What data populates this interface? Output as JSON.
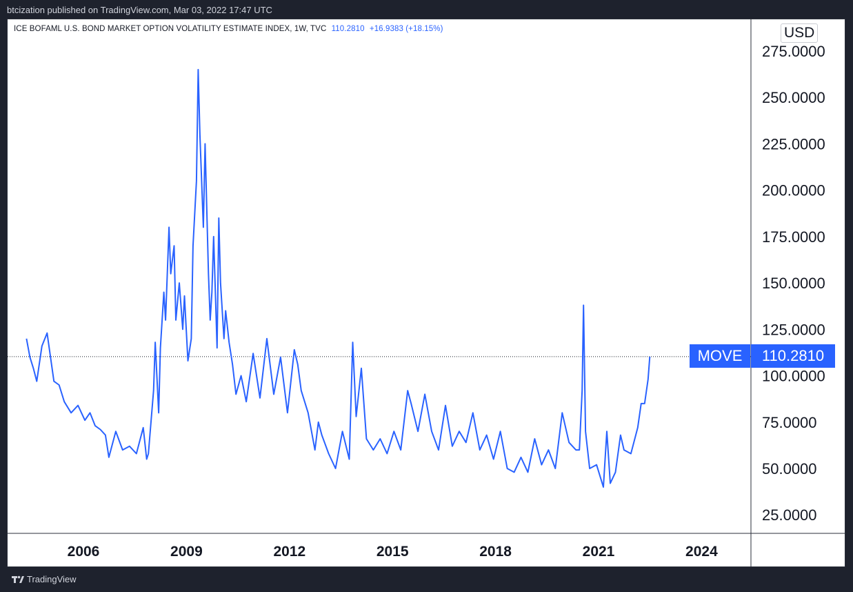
{
  "header": {
    "published": "btcization published on TradingView.com, Mar 03, 2022 17:47 UTC"
  },
  "legend": {
    "symbol": "ICE BOFAML U.S. BOND MARKET OPTION VOLATILITY ESTIMATE INDEX, 1W, TVC",
    "value": "110.2810",
    "change": "+16.9383 (+18.15%)"
  },
  "currency": "USD",
  "badges": {
    "symbol": "MOVE",
    "last": "110.2810"
  },
  "footer": {
    "brand": "TradingView"
  },
  "colors": {
    "line": "#2962ff",
    "background": "#ffffff",
    "frame": "#1e222d",
    "text": "#131722"
  },
  "chart_data": {
    "type": "line",
    "title": "ICE BOFAML U.S. BOND MARKET OPTION VOLATILITY ESTIMATE INDEX, 1W, TVC",
    "ylabel": "",
    "xlabel": "",
    "x_ticks": [
      "2006",
      "2009",
      "2012",
      "2015",
      "2018",
      "2021",
      "2024"
    ],
    "y_ticks": [
      "25.0000",
      "50.0000",
      "75.0000",
      "100.0000",
      "125.0000",
      "150.0000",
      "175.0000",
      "200.0000",
      "225.0000",
      "250.0000",
      "275.0000"
    ],
    "ylim": [
      15,
      285
    ],
    "xlim": [
      2003.9,
      2025.4
    ],
    "grid": false,
    "last_value": 110.281,
    "series": [
      {
        "name": "MOVE",
        "x": [
          2004.0,
          2004.1,
          2004.2,
          2004.3,
          2004.45,
          2004.6,
          2004.8,
          2004.95,
          2005.1,
          2005.3,
          2005.5,
          2005.7,
          2005.85,
          2006.0,
          2006.15,
          2006.3,
          2006.4,
          2006.6,
          2006.8,
          2007.0,
          2007.2,
          2007.4,
          2007.5,
          2007.55,
          2007.7,
          2007.75,
          2007.85,
          2007.9,
          2008.0,
          2008.05,
          2008.15,
          2008.2,
          2008.3,
          2008.35,
          2008.45,
          2008.55,
          2008.6,
          2008.7,
          2008.8,
          2008.85,
          2008.95,
          2009.0,
          2009.05,
          2009.15,
          2009.2,
          2009.3,
          2009.35,
          2009.4,
          2009.45,
          2009.55,
          2009.6,
          2009.65,
          2009.75,
          2009.8,
          2009.9,
          2010.0,
          2010.1,
          2010.25,
          2010.4,
          2010.6,
          2010.8,
          2011.0,
          2011.2,
          2011.4,
          2011.6,
          2011.8,
          2011.9,
          2012.0,
          2012.2,
          2012.4,
          2012.5,
          2012.6,
          2012.8,
          2013.0,
          2013.2,
          2013.4,
          2013.5,
          2013.6,
          2013.75,
          2013.9,
          2014.1,
          2014.3,
          2014.5,
          2014.7,
          2014.9,
          2015.1,
          2015.2,
          2015.4,
          2015.6,
          2015.8,
          2016.0,
          2016.2,
          2016.4,
          2016.6,
          2016.8,
          2017.0,
          2017.2,
          2017.4,
          2017.6,
          2017.8,
          2018.0,
          2018.2,
          2018.4,
          2018.6,
          2018.8,
          2019.0,
          2019.2,
          2019.4,
          2019.6,
          2019.8,
          2020.0,
          2020.1,
          2020.18,
          2020.22,
          2020.28,
          2020.4,
          2020.6,
          2020.8,
          2020.9,
          2021.0,
          2021.15,
          2021.3,
          2021.4,
          2021.6,
          2021.8,
          2021.9,
          2022.0,
          2022.1,
          2022.15
        ],
        "values": [
          120,
          110,
          104,
          97,
          116,
          123,
          97,
          95,
          86,
          80,
          84,
          76,
          80,
          73,
          71,
          68,
          56,
          70,
          60,
          62,
          58,
          72,
          55,
          58,
          92,
          118,
          80,
          115,
          145,
          130,
          180,
          155,
          170,
          130,
          150,
          125,
          143,
          108,
          120,
          170,
          205,
          265,
          230,
          180,
          225,
          155,
          130,
          145,
          175,
          115,
          185,
          150,
          120,
          135,
          118,
          106,
          90,
          100,
          86,
          112,
          88,
          120,
          90,
          110,
          80,
          114,
          106,
          92,
          80,
          60,
          75,
          68,
          58,
          50,
          70,
          55,
          118,
          78,
          104,
          66,
          60,
          66,
          58,
          70,
          60,
          92,
          85,
          70,
          90,
          70,
          60,
          84,
          62,
          70,
          64,
          80,
          60,
          68,
          55,
          70,
          50,
          48,
          56,
          48,
          66,
          52,
          60,
          50,
          80,
          64,
          60,
          60,
          92,
          138,
          70,
          50,
          52,
          40,
          70,
          42,
          48,
          68,
          60,
          58,
          72,
          85,
          85,
          98,
          110.28
        ]
      }
    ]
  }
}
